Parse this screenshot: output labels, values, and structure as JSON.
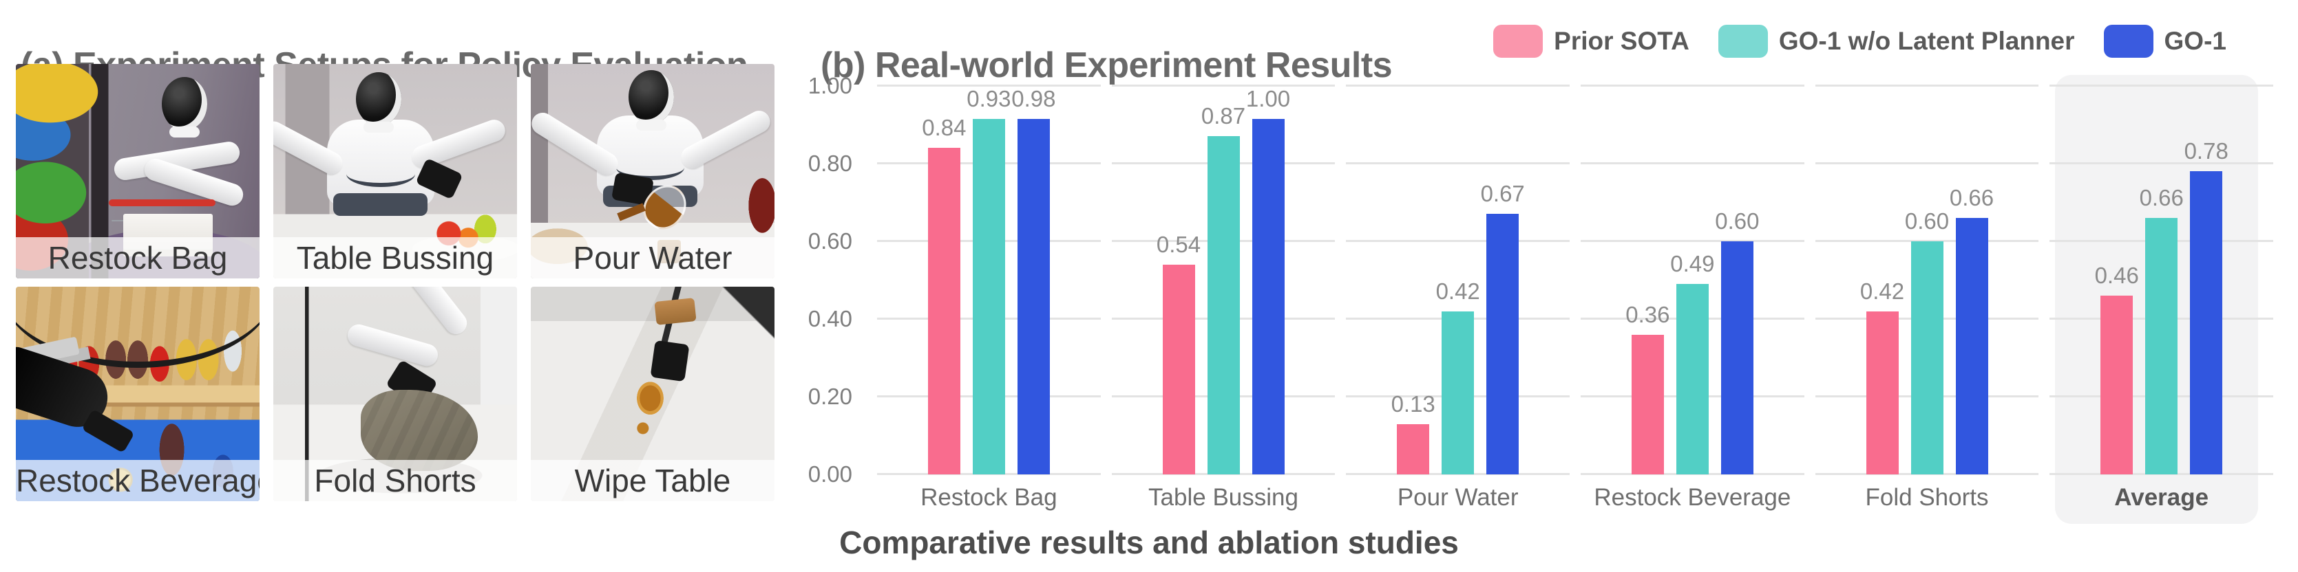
{
  "panel_a": {
    "title": "(a) Experiment Setups for Policy Evaluation",
    "setups": [
      {
        "label": "Restock Bag"
      },
      {
        "label": "Table Bussing"
      },
      {
        "label": "Pour Water"
      },
      {
        "label": "Restock Beverage"
      },
      {
        "label": "Fold Shorts"
      },
      {
        "label": "Wipe Table"
      }
    ]
  },
  "panel_b": {
    "title": "(b) Real-world Experiment Results",
    "caption": "Comparative results and ablation studies"
  },
  "chart_data": {
    "type": "bar",
    "categories": [
      "Restock Bag",
      "Table Bussing",
      "Pour Water",
      "Restock Beverage",
      "Fold Shorts",
      "Average"
    ],
    "series": [
      {
        "name": "Prior SOTA",
        "color": "#F96C8E",
        "legend_color": "#FA96AC",
        "values": [
          0.84,
          0.54,
          0.13,
          0.36,
          0.42,
          0.46
        ]
      },
      {
        "name": "GO-1 w/o Latent Planner",
        "color": "#52CFC5",
        "legend_color": "#7BD9D2",
        "values": [
          0.93,
          0.87,
          0.42,
          0.49,
          0.6,
          0.66
        ]
      },
      {
        "name": "GO-1",
        "color": "#3156DF",
        "legend_color": "#3A5BDF",
        "values": [
          0.98,
          1.0,
          0.67,
          0.6,
          0.66,
          0.78
        ]
      }
    ],
    "ylim": [
      0,
      1
    ],
    "yticks": [
      "0.00",
      "0.20",
      "0.40",
      "0.60",
      "0.80",
      "1.00"
    ],
    "grid": true,
    "legend_position": "top-right",
    "highlight_category": "Average",
    "highlight_color": "#F3F3F4",
    "value_labels": true
  }
}
